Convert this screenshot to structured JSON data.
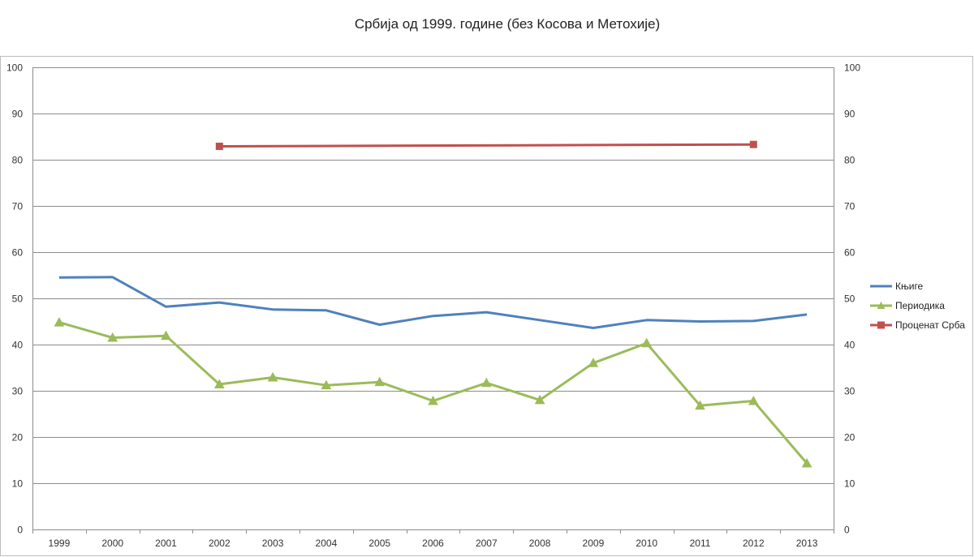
{
  "chart_data": {
    "type": "line",
    "title": "Србија од 1999. године (без Косова и Метохије)",
    "xlabel": "",
    "ylabel": "",
    "ylim": [
      0,
      100
    ],
    "yticks": [
      "0",
      "10",
      "20",
      "30",
      "40",
      "50",
      "60",
      "70",
      "80",
      "90",
      "100"
    ],
    "y2ticks": [
      "0",
      "10",
      "20",
      "30",
      "40",
      "50",
      "60",
      "70",
      "80",
      "90",
      "100"
    ],
    "grid": true,
    "legend_position": "right",
    "categories": [
      "1999",
      "2000",
      "2001",
      "2002",
      "2003",
      "2004",
      "2005",
      "2006",
      "2007",
      "2008",
      "2009",
      "2010",
      "2011",
      "2012",
      "2013"
    ],
    "series": [
      {
        "name": "Књиге",
        "color": "#4f81bd",
        "marker": "none",
        "values": [
          54.5,
          54.6,
          48.2,
          49.1,
          47.6,
          47.4,
          44.3,
          46.2,
          47.0,
          45.3,
          43.6,
          45.3,
          45.0,
          45.1,
          46.5
        ]
      },
      {
        "name": "Периодика",
        "color": "#9bbb59",
        "marker": "triangle",
        "values": [
          44.8,
          41.5,
          41.9,
          31.4,
          32.9,
          31.2,
          31.9,
          27.8,
          31.7,
          28.0,
          36.0,
          40.3,
          26.8,
          27.8,
          14.3
        ]
      },
      {
        "name": "Проценат Срба",
        "color": "#c0504d",
        "marker": "square",
        "values": [
          null,
          null,
          null,
          82.9,
          null,
          null,
          null,
          null,
          null,
          null,
          null,
          null,
          null,
          83.3,
          null
        ]
      }
    ]
  }
}
